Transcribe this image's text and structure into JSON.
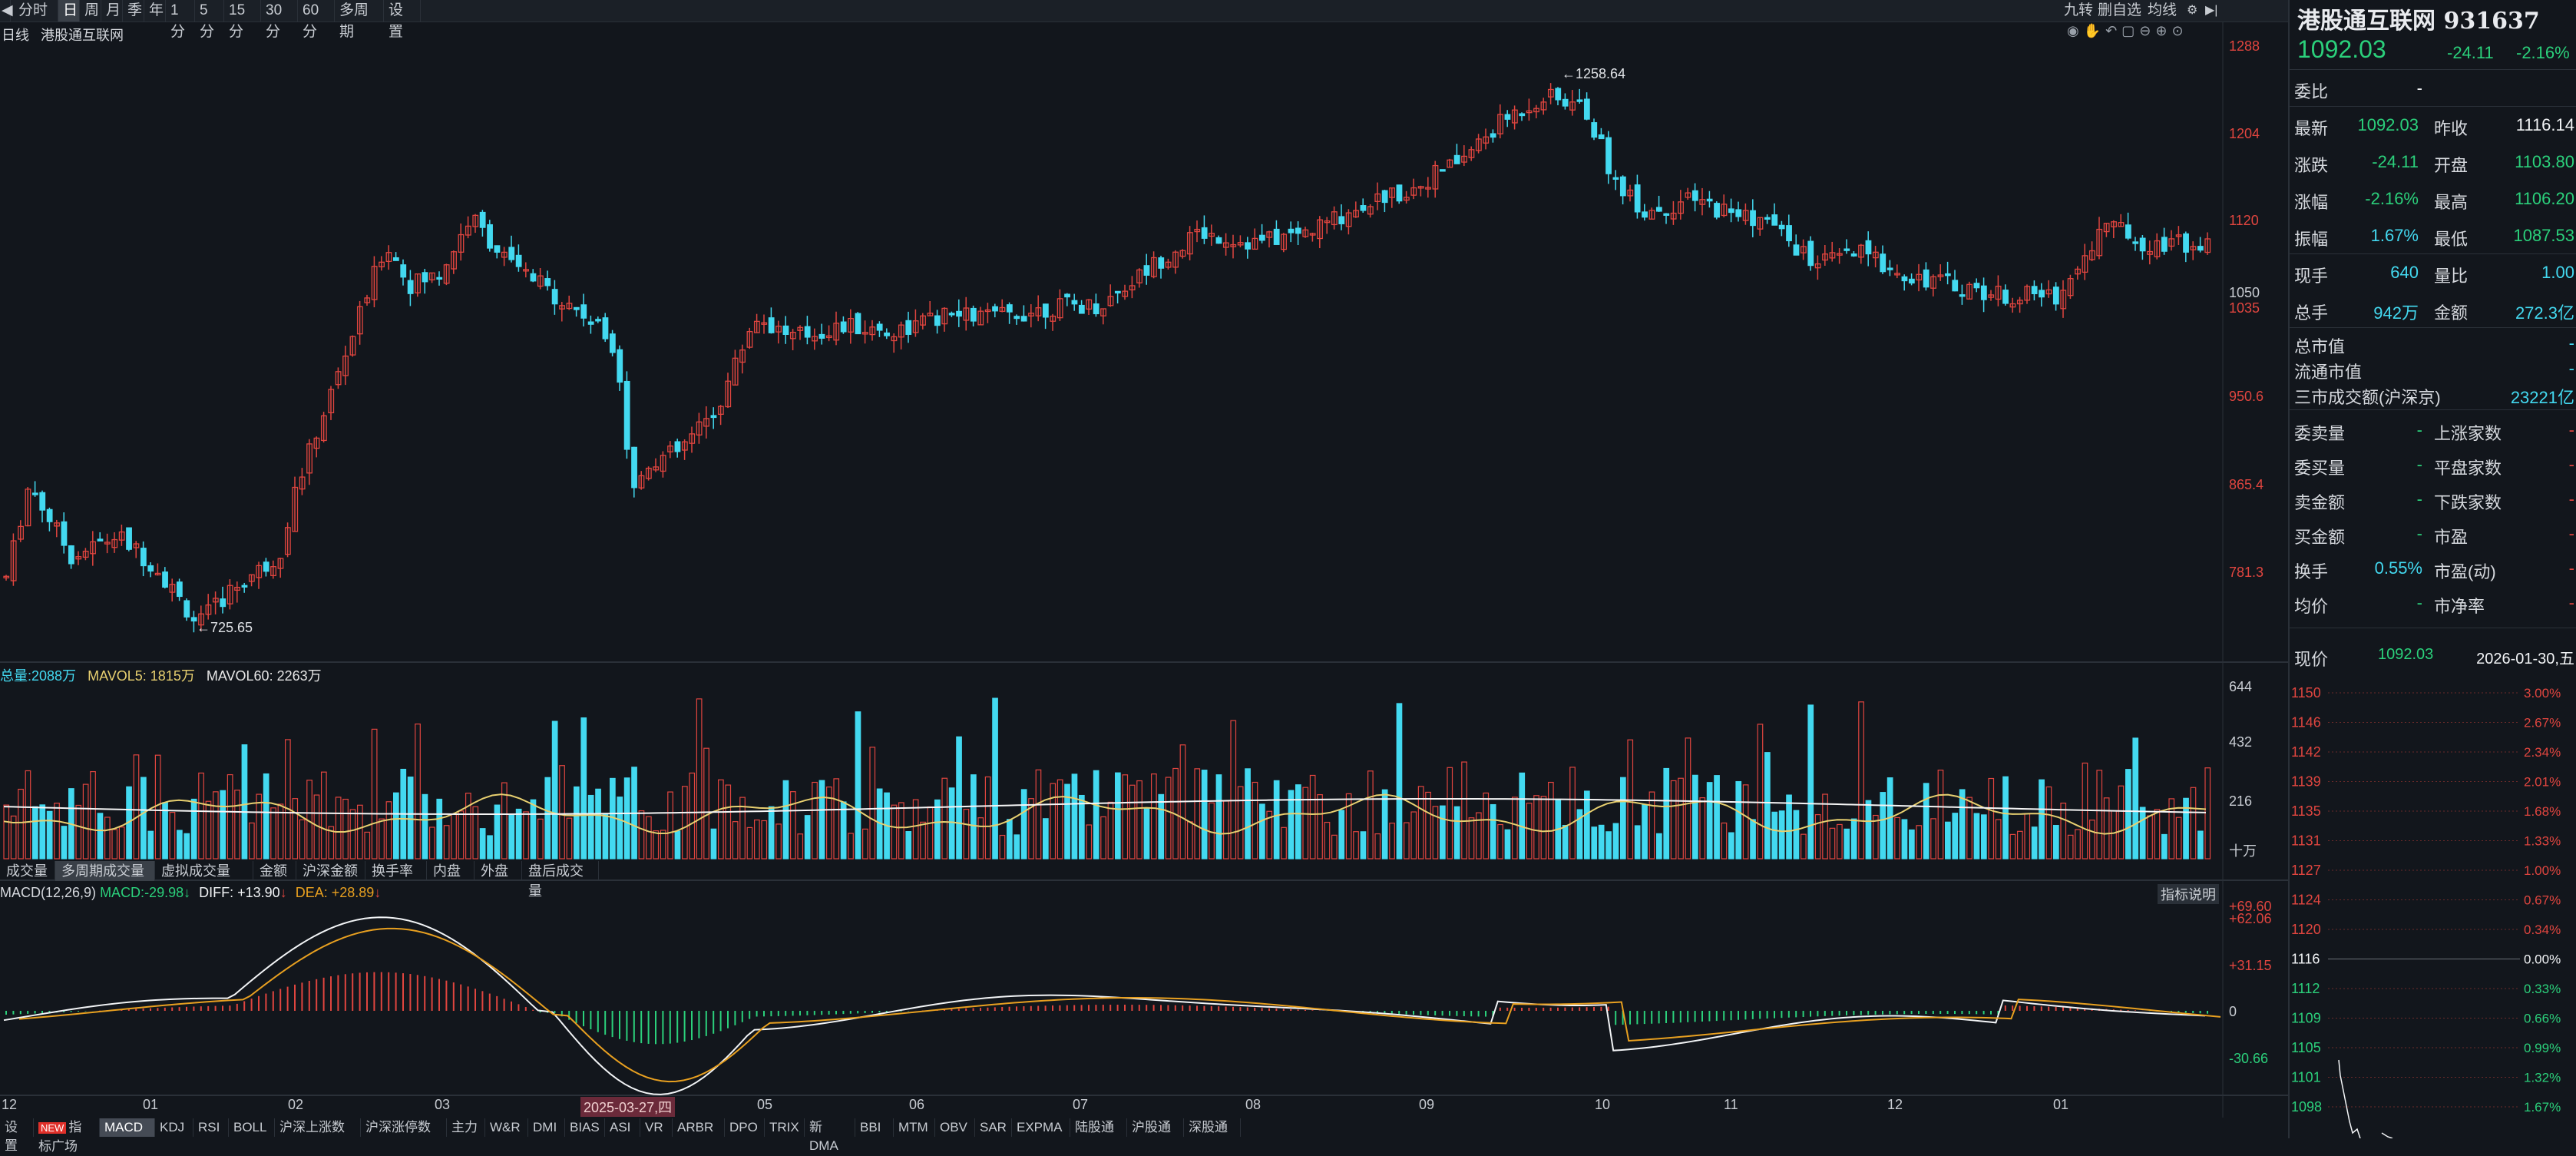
{
  "toolbar": {
    "periods": [
      "分时",
      "日",
      "周",
      "月",
      "季",
      "年",
      "1分",
      "5分",
      "15分",
      "30分",
      "60分",
      "多周期",
      "设置"
    ],
    "active": "日",
    "right_items": [
      "九转",
      "删自选",
      "均线"
    ]
  },
  "chart_header": {
    "period": "日线",
    "name": "港股通互联网"
  },
  "annotations": {
    "high": "1258.64",
    "low": "725.65"
  },
  "price_axis": [
    "1288",
    "1204",
    "1120",
    "1035",
    "950.6",
    "865.4",
    "781.3"
  ],
  "price_axis_marker": "1050",
  "volume_header": {
    "total_label": "总量:",
    "total": "2088万",
    "mavol5_label": "MAVOL5:",
    "mavol5": "1815万",
    "mavol60_label": "MAVOL60:",
    "mavol60": "2263万"
  },
  "volume_axis": [
    "644",
    "432",
    "216"
  ],
  "volume_unit": "十万",
  "volume_tabs": [
    "成交量",
    "多周期成交量",
    "虚拟成交量",
    "金额",
    "沪深金额",
    "换手率",
    "内盘",
    "外盘",
    "盘后成交量"
  ],
  "volume_tab_active": "多周期成交量",
  "macd_header": {
    "title": "MACD(12,26,9)",
    "macd_label": "MACD:",
    "macd": "-29.98",
    "diff_label": "DIFF:",
    "diff": "+13.90",
    "dea_label": "DEA:",
    "dea": "+28.89"
  },
  "macd_axis": [
    "+69.60",
    "+62.06",
    "+31.15",
    "0",
    "-30.66"
  ],
  "macd_help": "指标说明",
  "date_axis": [
    "12",
    "01",
    "02",
    "03",
    "2025-03-27,四",
    "05",
    "06",
    "07",
    "08",
    "09",
    "10",
    "11",
    "12",
    "01"
  ],
  "bottom_tabs": [
    "设置",
    "指标广场",
    "MACD",
    "KDJ",
    "RSI",
    "BOLL",
    "沪深上涨数",
    "沪深涨停数",
    "主力",
    "W&R",
    "DMI",
    "BIAS",
    "ASI",
    "VR",
    "ARBR",
    "DPO",
    "TRIX",
    "新DMA",
    "BBI",
    "MTM",
    "OBV",
    "SAR",
    "EXPMA",
    "陆股通",
    "沪股通",
    "深股通"
  ],
  "bottom_tab_active": "MACD",
  "bottom_new_badge": "NEW",
  "panel": {
    "title": "港股通互联网 931637",
    "price": "1092.03",
    "change": "-24.11",
    "change_pct": "-2.16%",
    "rows": [
      {
        "l": "委比",
        "v": "-",
        "l2": "",
        "v2": ""
      },
      {
        "l": "最新",
        "v": "1092.03",
        "l2": "昨收",
        "v2": "1116.14"
      },
      {
        "l": "涨跌",
        "v": "-24.11",
        "l2": "开盘",
        "v2": "1103.80"
      },
      {
        "l": "涨幅",
        "v": "-2.16%",
        "l2": "最高",
        "v2": "1106.20"
      },
      {
        "l": "振幅",
        "v": "1.67%",
        "l2": "最低",
        "v2": "1087.53"
      },
      {
        "l": "现手",
        "v": "640",
        "l2": "量比",
        "v2": "1.00"
      },
      {
        "l": "总手",
        "v": "942万",
        "l2": "金额",
        "v2": "272.3亿"
      }
    ],
    "rows2": [
      {
        "l": "总市值",
        "v": "-"
      },
      {
        "l": "流通市值",
        "v": "-"
      },
      {
        "l": "三市成交额(沪深京)",
        "v": "23221亿"
      }
    ],
    "rows3": [
      {
        "l": "委卖量",
        "v": "-",
        "l2": "上涨家数",
        "v2": "-"
      },
      {
        "l": "委买量",
        "v": "-",
        "l2": "平盘家数",
        "v2": "-"
      },
      {
        "l": "卖金额",
        "v": "-",
        "l2": "下跌家数",
        "v2": "-"
      },
      {
        "l": "买金额",
        "v": "-",
        "l2": "市盈",
        "v2": "-"
      },
      {
        "l": "换手",
        "v": "0.55%",
        "l2": "市盈(动)",
        "v2": "-"
      },
      {
        "l": "均价",
        "v": "-",
        "l2": "市净率",
        "v2": "-"
      }
    ],
    "quote": {
      "label": "现价",
      "price": "1092.03",
      "date": "2026-01-30,五"
    },
    "mini_left": [
      "1150",
      "1146",
      "1142",
      "1139",
      "1135",
      "1131",
      "1127",
      "1124",
      "1120",
      "1116",
      "1112",
      "1109",
      "1105",
      "1101",
      "1098"
    ],
    "mini_right": [
      "3.00%",
      "2.67%",
      "2.34%",
      "2.01%",
      "1.68%",
      "1.33%",
      "1.00%",
      "0.67%",
      "0.34%",
      "0.00%",
      "0.33%",
      "0.66%",
      "0.99%",
      "1.32%",
      "1.67%"
    ]
  },
  "colors": {
    "up": "#e0453f",
    "down": "#43d9f0",
    "bg": "#12161c",
    "ma5": "#f5f5f5",
    "ma60": "#e8c000",
    "macd_pos": "#e0453f",
    "macd_neg": "#2bd07b"
  }
}
